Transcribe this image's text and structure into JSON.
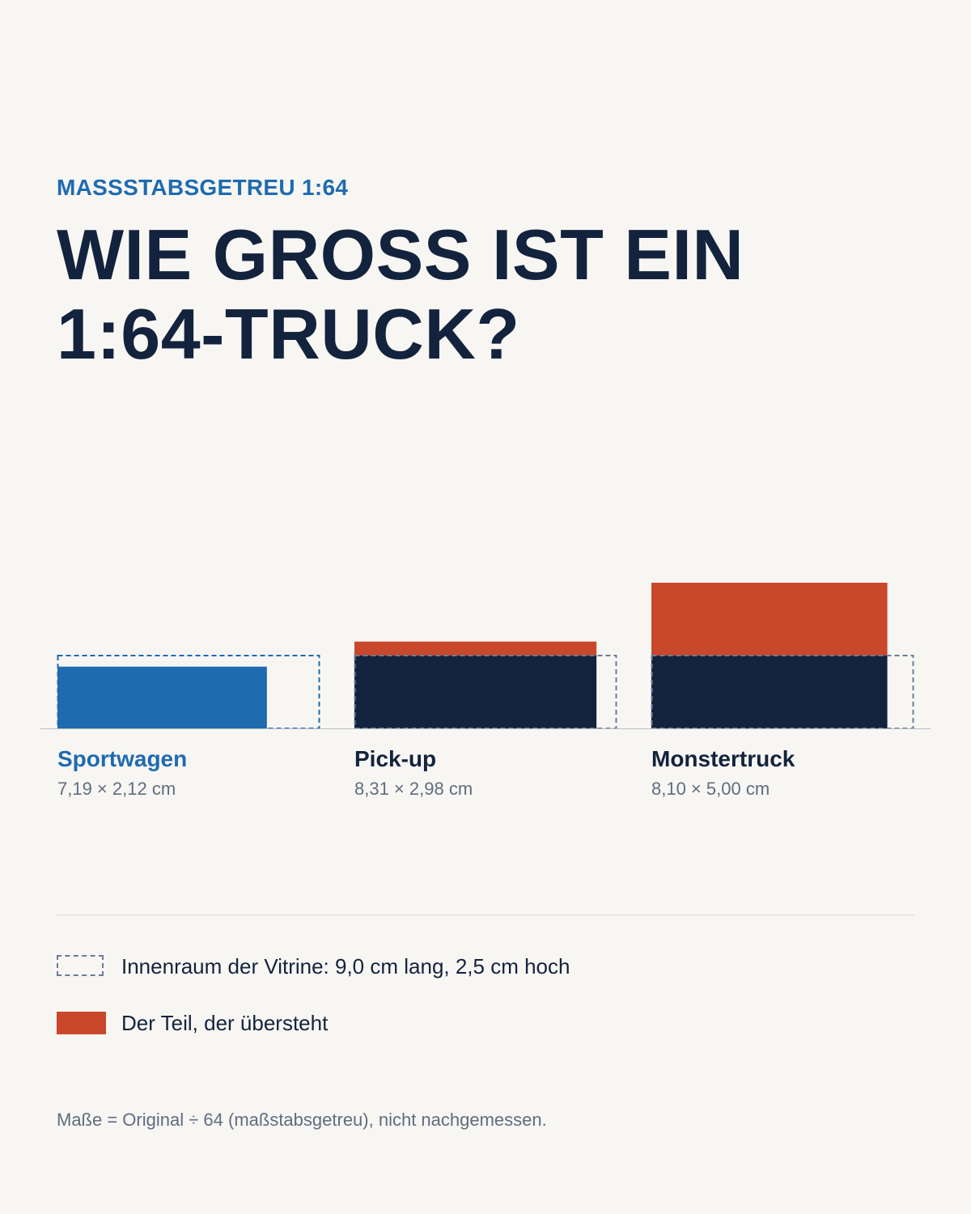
{
  "header": {
    "kicker": "MASSSTABSGETREU 1:64",
    "title": "WIE GROSS IST EIN 1:64-TRUCK?"
  },
  "chart_data": {
    "type": "bar",
    "unit": "cm",
    "vitrine": {
      "length": 9.0,
      "height": 2.5
    },
    "categories": [
      "Sportwagen",
      "Pick-up",
      "Monstertruck"
    ],
    "items": [
      {
        "name": "Sportwagen",
        "length": 7.19,
        "height": 2.12,
        "dims_label": "7,19 × 2,12 cm",
        "fits": true
      },
      {
        "name": "Pick-up",
        "length": 8.31,
        "height": 2.98,
        "dims_label": "8,31 × 2,98 cm",
        "fits": false
      },
      {
        "name": "Monstertruck",
        "length": 8.1,
        "height": 5.0,
        "dims_label": "8,10 × 5,00 cm",
        "fits": false
      }
    ]
  },
  "legend": {
    "vitrine_label": "Innenraum der Vitrine: 9,0 cm lang, 2,5 cm hoch",
    "overflow_label": "Der Teil, der übersteht"
  },
  "footnote": "Maße = Original ÷ 64 (maßstabsgetreu), nicht nachgemessen.",
  "colors": {
    "fits": "#1e6bb0",
    "body": "#13233d",
    "overflow": "#c9472b",
    "vitrine_outline": "#6b7d95",
    "fits_outline": "#1e6bb0",
    "baseline": "#b8bcc3",
    "dims_text": "#5f6d80"
  }
}
